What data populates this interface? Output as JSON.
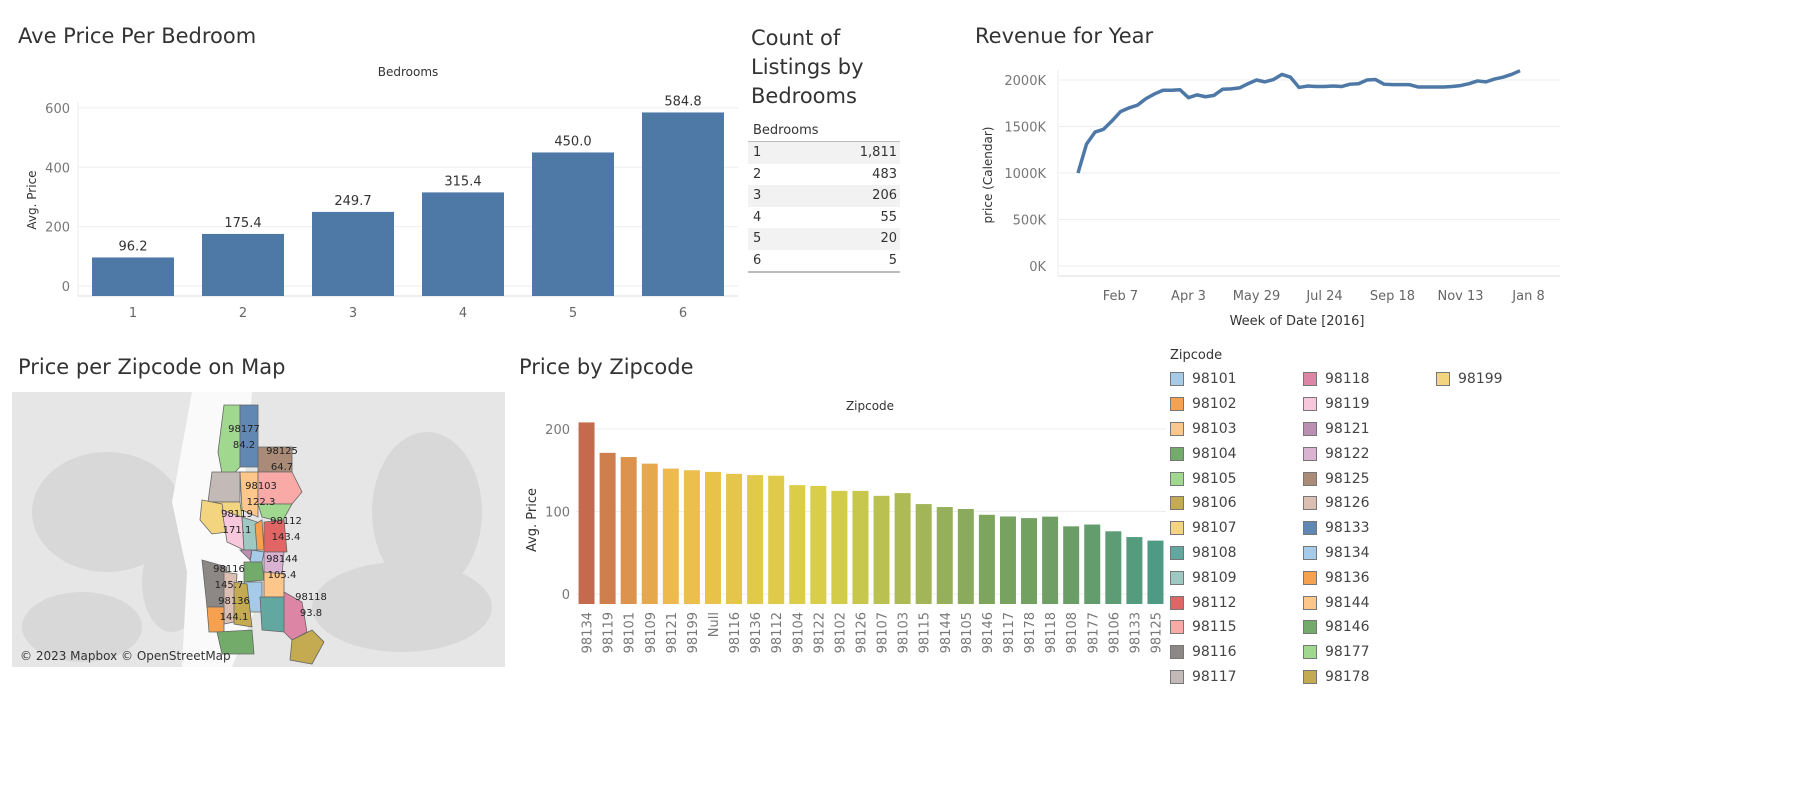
{
  "titles": {
    "bedroom": "Ave Price Per Bedroom",
    "count": "Count of Listings by Bedrooms",
    "revenue": "Revenue for Year",
    "map": "Price per Zipcode on Map",
    "zipcode": "Price by Zipcode"
  },
  "table": {
    "header": "Bedrooms",
    "rows": [
      {
        "k": "1",
        "v": "1,811"
      },
      {
        "k": "2",
        "v": "483"
      },
      {
        "k": "3",
        "v": "206"
      },
      {
        "k": "4",
        "v": "55"
      },
      {
        "k": "5",
        "v": "20"
      },
      {
        "k": "6",
        "v": "5"
      }
    ]
  },
  "map": {
    "credit": "© 2023 Mapbox © OpenStreetMap",
    "labels": [
      {
        "zip": "98177",
        "val": "84.2"
      },
      {
        "zip": "98125",
        "val": "64.7"
      },
      {
        "zip": "98103",
        "val": "122.3"
      },
      {
        "zip": "98119",
        "val": "171.1"
      },
      {
        "zip": "98112",
        "val": "143.4"
      },
      {
        "zip": "98144",
        "val": "105.4"
      },
      {
        "zip": "98116",
        "val": "145.7"
      },
      {
        "zip": "98136",
        "val": "144.1"
      },
      {
        "zip": "98118",
        "val": "93.8"
      }
    ]
  },
  "legend": {
    "title": "Zipcode",
    "items": [
      {
        "zip": "98101",
        "color": "#a6cbe8"
      },
      {
        "zip": "98102",
        "color": "#f5a14f"
      },
      {
        "zip": "98103",
        "color": "#fdc68b"
      },
      {
        "zip": "98104",
        "color": "#73ab6b"
      },
      {
        "zip": "98105",
        "color": "#a0d88f"
      },
      {
        "zip": "98106",
        "color": "#c4aa51"
      },
      {
        "zip": "98107",
        "color": "#f2d57e"
      },
      {
        "zip": "98108",
        "color": "#63a7a1"
      },
      {
        "zip": "98109",
        "color": "#9ec9c2"
      },
      {
        "zip": "98112",
        "color": "#e06666"
      },
      {
        "zip": "98115",
        "color": "#f9a9a6"
      },
      {
        "zip": "98116",
        "color": "#8d8786"
      },
      {
        "zip": "98117",
        "color": "#c3b9b6"
      },
      {
        "zip": "98118",
        "color": "#dc85a5"
      },
      {
        "zip": "98119",
        "color": "#f7c8db"
      },
      {
        "zip": "98121",
        "color": "#ba8fb1"
      },
      {
        "zip": "98122",
        "color": "#dab3d2"
      },
      {
        "zip": "98125",
        "color": "#a98b78"
      },
      {
        "zip": "98126",
        "color": "#dbbfb2"
      },
      {
        "zip": "98133",
        "color": "#6187b3"
      },
      {
        "zip": "98134",
        "color": "#a6cbe8"
      },
      {
        "zip": "98136",
        "color": "#f5a14f"
      },
      {
        "zip": "98144",
        "color": "#fdc68b"
      },
      {
        "zip": "98146",
        "color": "#73ab6b"
      },
      {
        "zip": "98177",
        "color": "#a0d88f"
      },
      {
        "zip": "98178",
        "color": "#c4aa51"
      },
      {
        "zip": "98199",
        "color": "#f2d57e"
      }
    ]
  },
  "chart_data": [
    {
      "type": "bar",
      "title": "Ave Price Per Bedroom",
      "xlabel": "Bedrooms",
      "ylabel": "Avg. Price",
      "categories": [
        "1",
        "2",
        "3",
        "4",
        "5",
        "6"
      ],
      "values": [
        96.2,
        175.4,
        249.7,
        315.4,
        450.0,
        584.8
      ],
      "labels": [
        "96.2",
        "175.4",
        "249.7",
        "315.4",
        "450.0",
        "584.8"
      ],
      "ylim": [
        0,
        620
      ],
      "yticks": [
        "0",
        "200",
        "400",
        "600"
      ],
      "color": "#4e79a7",
      "grid": true
    },
    {
      "type": "line",
      "title": "Revenue for Year",
      "xlabel": "Week of Date [2016]",
      "ylabel": "price (Calendar)",
      "yticks": [
        "0K",
        "500K",
        "1000K",
        "1500K",
        "2000K"
      ],
      "ylim": [
        0,
        2150
      ],
      "xticks": [
        "Feb 7",
        "Apr 3",
        "May 29",
        "Jul 24",
        "Sep 18",
        "Nov 13",
        "Jan 8"
      ],
      "x_start": "Jan 3",
      "color": "#4e79a7",
      "values_k": [
        1000,
        1310,
        1440,
        1470,
        1560,
        1660,
        1700,
        1730,
        1800,
        1850,
        1890,
        1890,
        1895,
        1810,
        1840,
        1820,
        1835,
        1900,
        1905,
        1915,
        1960,
        2000,
        1980,
        2005,
        2060,
        2030,
        1920,
        1935,
        1930,
        1930,
        1935,
        1930,
        1955,
        1960,
        2000,
        2005,
        1955,
        1950,
        1950,
        1950,
        1925,
        1925,
        1925,
        1925,
        1930,
        1940,
        1960,
        1990,
        1980,
        2010,
        2030,
        2060,
        2100
      ]
    },
    {
      "type": "bar",
      "title": "Price by Zipcode",
      "xlabel": "Zipcode",
      "ylabel": "Avg. Price",
      "yticks": [
        "0",
        "100",
        "200"
      ],
      "ylim": [
        0,
        215
      ],
      "categories": [
        "98134",
        "98119",
        "98101",
        "98109",
        "98121",
        "98199",
        "Null",
        "98116",
        "98136",
        "98112",
        "98104",
        "98122",
        "98102",
        "98126",
        "98107",
        "98103",
        "98115",
        "98144",
        "98105",
        "98146",
        "98117",
        "98178",
        "98118",
        "98108",
        "98177",
        "98106",
        "98133",
        "98125"
      ],
      "values": [
        208,
        171.1,
        166,
        158,
        152,
        150,
        148,
        145.7,
        144.1,
        143.4,
        132,
        131,
        125,
        125,
        119,
        122.3,
        109,
        105.4,
        103,
        96,
        94,
        92,
        93.8,
        82,
        84.2,
        76,
        69,
        64.7
      ],
      "color_stops": [
        "#c46b4f",
        "#f0b94d",
        "#e2c94a",
        "#d8cf47",
        "#a9b857",
        "#7aa35f",
        "#6a9e66",
        "#4e9a85"
      ]
    }
  ]
}
